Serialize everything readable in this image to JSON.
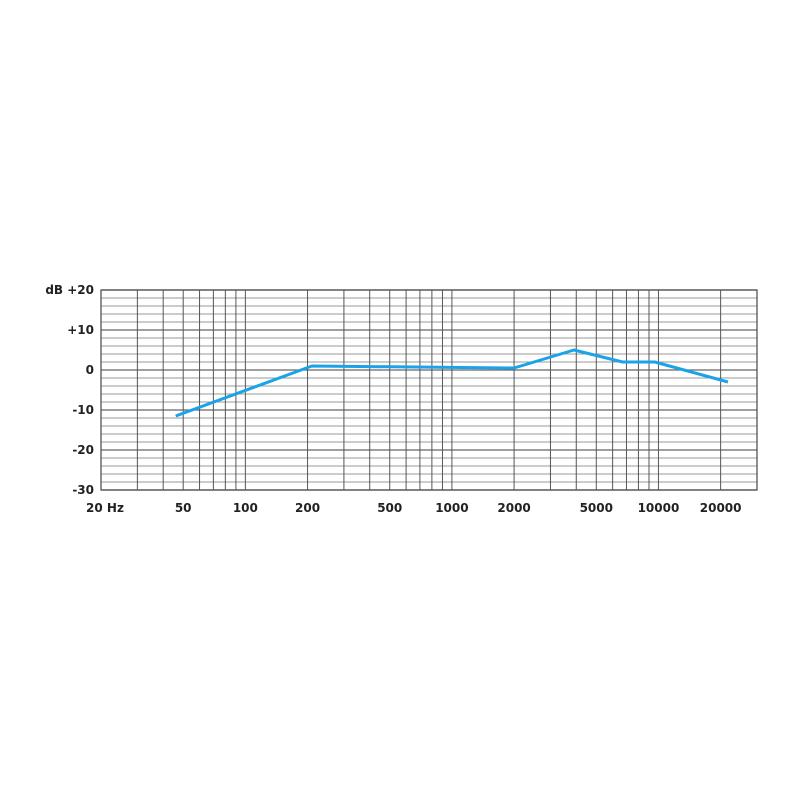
{
  "chart_data": {
    "type": "line",
    "title": "",
    "x_scale": "log",
    "xlim": [
      20,
      30000
    ],
    "ylim": [
      -30,
      20
    ],
    "grid": true,
    "y_minor_step": 2,
    "x_tick_labels": [
      {
        "value": 20,
        "label": "20 Hz"
      },
      {
        "value": 50,
        "label": "50"
      },
      {
        "value": 100,
        "label": "100"
      },
      {
        "value": 200,
        "label": "200"
      },
      {
        "value": 500,
        "label": "500"
      },
      {
        "value": 1000,
        "label": "1000"
      },
      {
        "value": 2000,
        "label": "2000"
      },
      {
        "value": 5000,
        "label": "5000"
      },
      {
        "value": 10000,
        "label": "10000"
      },
      {
        "value": 20000,
        "label": "20000"
      }
    ],
    "y_tick_labels": [
      {
        "value": 20,
        "label": "dB +20"
      },
      {
        "value": 10,
        "label": "+10"
      },
      {
        "value": 0,
        "label": "0"
      },
      {
        "value": -10,
        "label": "-10"
      },
      {
        "value": -20,
        "label": "-20"
      },
      {
        "value": -30,
        "label": "-30"
      }
    ],
    "series": [
      {
        "color": "#1aa3e8",
        "x": [
          46,
          210,
          2000,
          3900,
          6700,
          9600,
          21700
        ],
        "y": [
          -11.5,
          1,
          0.5,
          5,
          2,
          2,
          -3
        ]
      }
    ]
  }
}
